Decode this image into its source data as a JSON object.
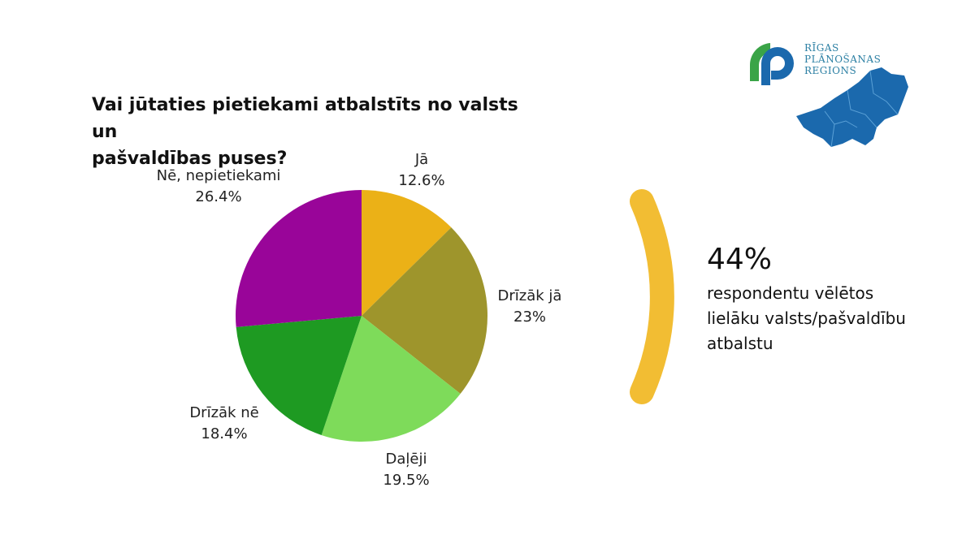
{
  "title": {
    "line1": "Vai jūtaties pietiekami atbalstīts no valsts un",
    "line2": "pašvaldības puses?"
  },
  "colors": {
    "ja": "#ebb117",
    "drizak_ja": "#9e952c",
    "daleji": "#7edb5a",
    "drizak_ne": "#1e9a22",
    "ne": "#990599",
    "accent_arc": "#f2bd33",
    "logo_blue": "#1b69ad",
    "logo_green": "#3aa447"
  },
  "chart_data": {
    "type": "pie",
    "title": "Vai jūtaties pietiekami atbalstīts no valsts un pašvaldības puses?",
    "slices": [
      {
        "name": "Jā",
        "value": 12.6,
        "display": "12.6%",
        "color": "#ebb117"
      },
      {
        "name": "Drīzāk jā",
        "value": 23,
        "display": "23%",
        "color": "#9e952c"
      },
      {
        "name": "Daļēji",
        "value": 19.5,
        "display": "19.5%",
        "color": "#7edb5a"
      },
      {
        "name": "Drīzāk nē",
        "value": 18.4,
        "display": "18.4%",
        "color": "#1e9a22"
      },
      {
        "name": "Nē, nepietiekami",
        "value": 26.4,
        "display": "26.4%",
        "color": "#990599"
      }
    ]
  },
  "stat": {
    "percent": "44%",
    "line1": "respondentu vēlētos",
    "line2": "lielāku valsts/pašvaldību",
    "line3": "atbalstu"
  },
  "logo": {
    "line1": "RĪGAS",
    "line2": "PLĀNOŠANAS",
    "line3": "REGIONS"
  }
}
